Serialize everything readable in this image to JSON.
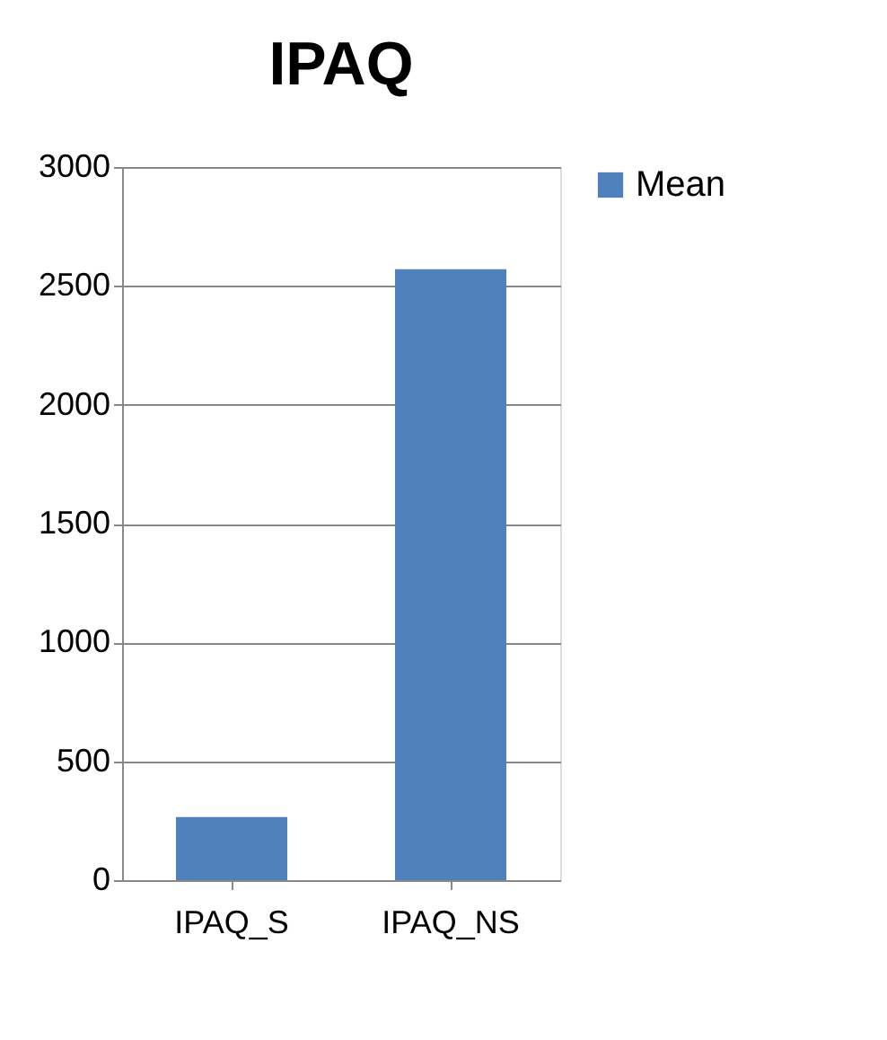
{
  "chart_data": {
    "type": "bar",
    "title": "IPAQ",
    "categories": [
      "IPAQ_S",
      "IPAQ_NS"
    ],
    "series": [
      {
        "name": "Mean",
        "color": "#4f81bd",
        "values": [
          265,
          2570
        ]
      }
    ],
    "ylim": [
      0,
      3000
    ],
    "yticks": [
      0,
      500,
      1000,
      1500,
      2000,
      2500,
      3000
    ],
    "grid": "y",
    "legend": "right"
  }
}
